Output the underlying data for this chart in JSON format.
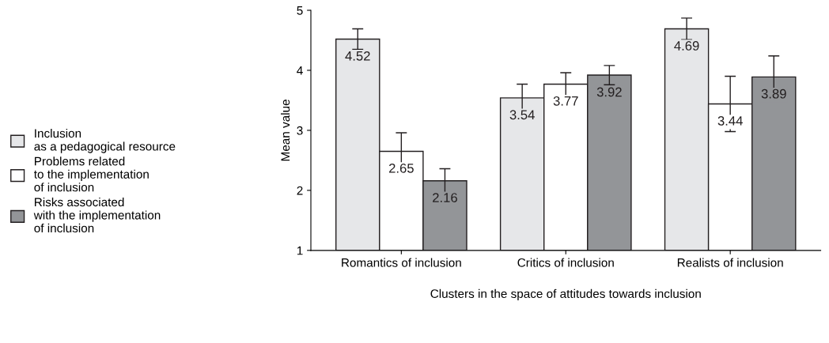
{
  "chart_data": {
    "type": "bar",
    "xlabel": "Clusters in the space of attitudes towards inclusion",
    "ylabel": "Mean value",
    "categories": [
      "Romantics of inclusion",
      "Critics of inclusion",
      "Realists of inclusion"
    ],
    "series": [
      {
        "name": "Inclusion\nas a pedagogical resource",
        "color": "#e6e7e9",
        "values": [
          4.52,
          3.54,
          4.69
        ],
        "errors": [
          0.17,
          0.23,
          0.18
        ]
      },
      {
        "name": "Problems related\nto the implementation\nof inclusion",
        "color": "#ffffff",
        "values": [
          2.65,
          3.77,
          3.44
        ],
        "errors": [
          0.31,
          0.19,
          0.46
        ]
      },
      {
        "name": "Risks associated\nwith the implementation\nof inclusion",
        "color": "#939598",
        "values": [
          2.16,
          3.92,
          3.89
        ],
        "errors": [
          0.2,
          0.16,
          0.35
        ]
      }
    ],
    "ylim": [
      1,
      5
    ],
    "yticks": [
      1,
      2,
      3,
      4,
      5
    ],
    "data_labels": true,
    "legend": "left",
    "grid": false
  }
}
